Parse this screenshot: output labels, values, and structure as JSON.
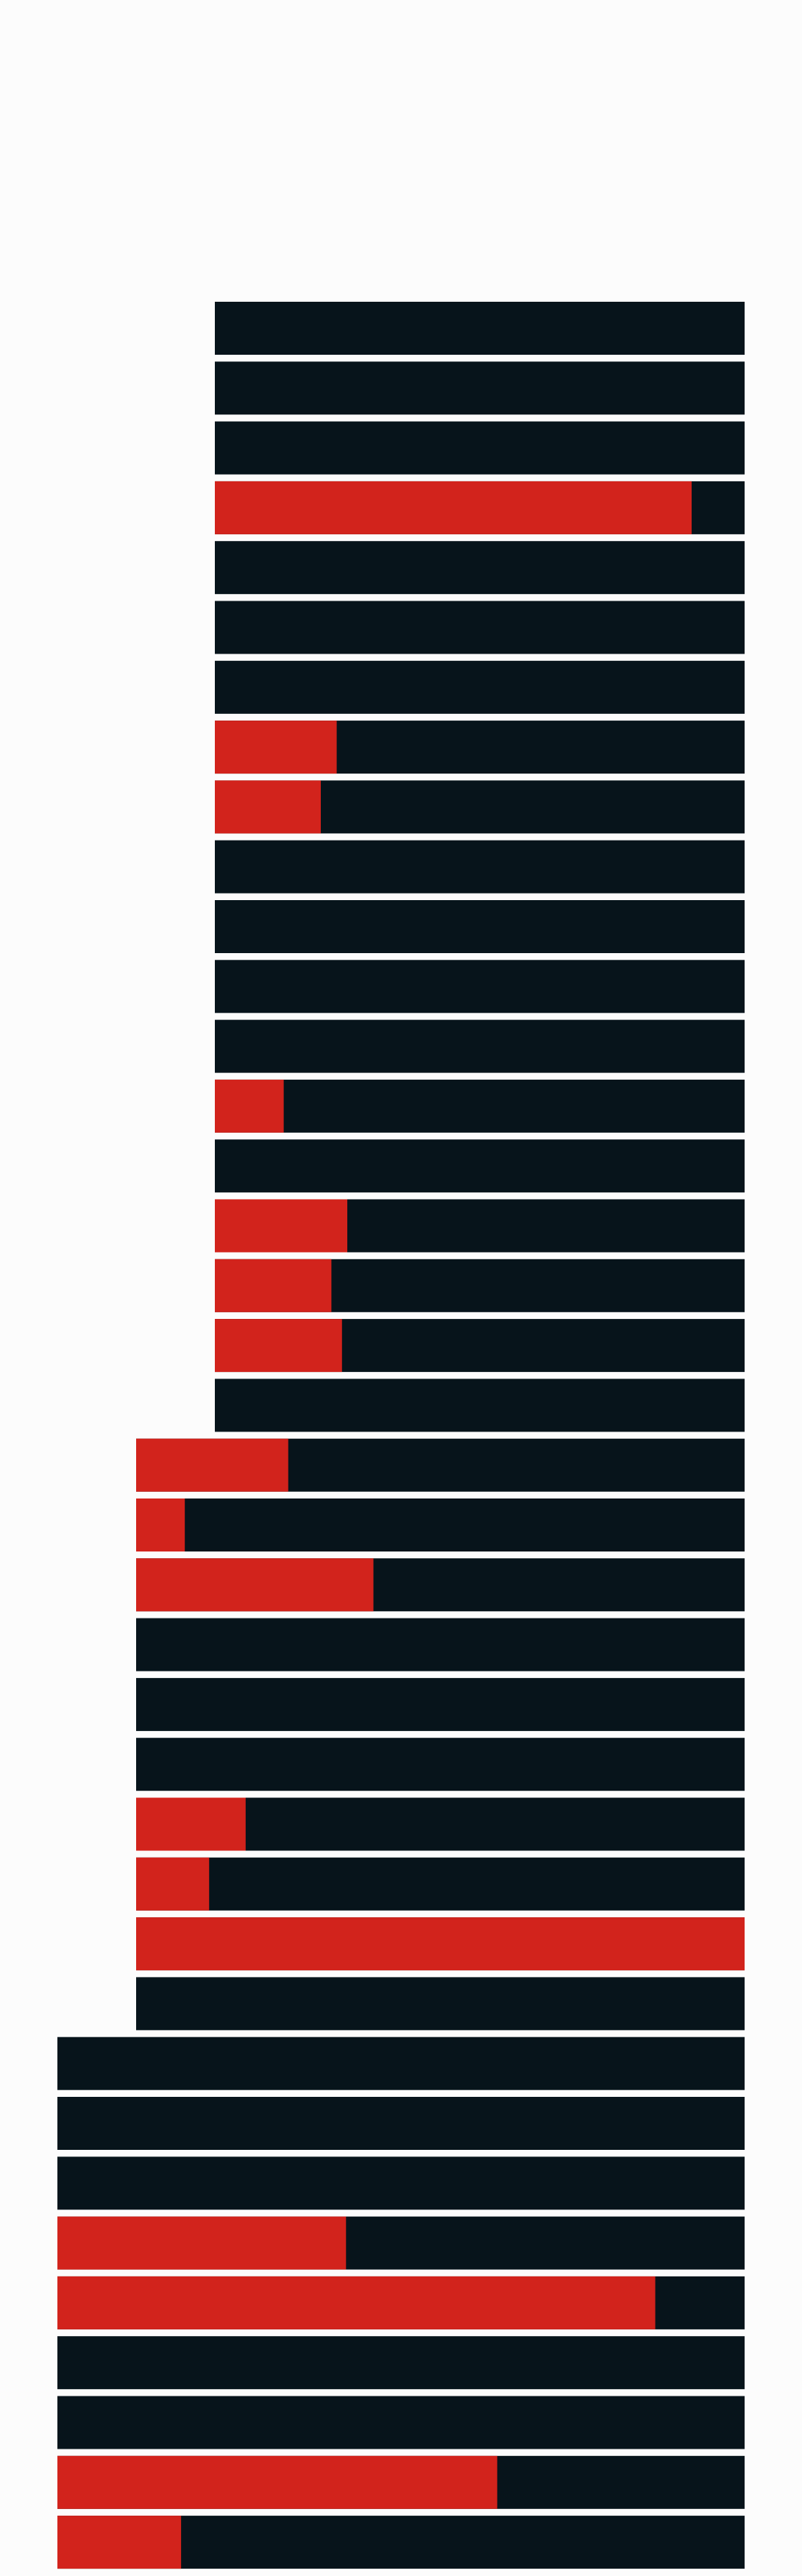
{
  "colors": {
    "background": "#fcfcfc",
    "track": "#07141b",
    "fill": "#d2231c",
    "separator": "#f0f0f2"
  },
  "chart_data": {
    "type": "bar",
    "orientation": "horizontal",
    "stacked_fraction": true,
    "title": "",
    "xlabel": "",
    "ylabel": "",
    "grid": false,
    "legend": "none",
    "groups": [
      {
        "name": "",
        "rows": [
          0,
          0,
          0,
          0.9,
          0,
          0,
          0,
          0.23,
          0.2,
          0,
          0,
          0,
          0,
          0.13,
          0,
          0.25,
          0.22,
          0.24,
          0
        ]
      },
      {
        "name": "",
        "rows": [
          0.25,
          0.08,
          0.39,
          0,
          0,
          0,
          0.18,
          0.12,
          1.0,
          0
        ]
      },
      {
        "name": "",
        "rows": [
          0,
          0,
          0,
          0.42,
          0.87,
          0,
          0,
          0.64,
          0.18
        ]
      }
    ]
  }
}
